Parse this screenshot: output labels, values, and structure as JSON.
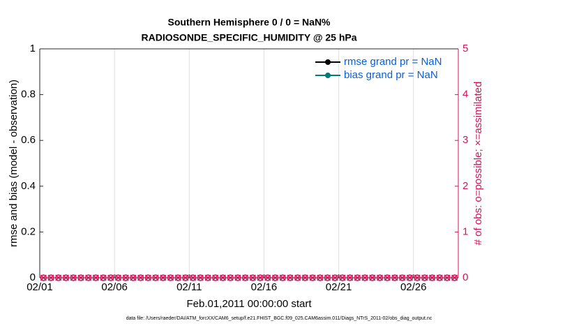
{
  "chart_data": {
    "type": "line",
    "title": "Southern Hemisphere 0 / 0 = NaN%",
    "subtitle": "RADIOSONDE_SPECIFIC_HUMIDITY @ 25 hPa",
    "x_label": "Feb.01,2011 00:00:00 start",
    "y_label": "rmse and bias (model - observation)",
    "y2_label": "# of obs: o=possible; ×=assimilated",
    "footnote": "data file: /Users/raeder/DAI/ATM_forcXX/CAM6_setup/f.e21.FHIST_BGC.f09_025.CAM6assim.011/Diags_NTrS_2011-02/obs_diag_output.nc",
    "xlim": [
      0,
      28
    ],
    "xticks": [
      {
        "value": 0,
        "label": "02/01"
      },
      {
        "value": 5,
        "label": "02/06"
      },
      {
        "value": 10,
        "label": "02/11"
      },
      {
        "value": 15,
        "label": "02/16"
      },
      {
        "value": 20,
        "label": "02/21"
      },
      {
        "value": 25,
        "label": "02/26"
      }
    ],
    "ylim": [
      0,
      1
    ],
    "yticks": [
      0,
      0.2,
      0.4,
      0.6,
      0.8,
      1
    ],
    "y2lim": [
      0,
      5
    ],
    "y2ticks": [
      0,
      1,
      2,
      3,
      4,
      5
    ],
    "y2_color": "#d6135a",
    "grid": "x",
    "legend": "upper right",
    "x": [
      0.25,
      0.75,
      1.25,
      1.75,
      2.25,
      2.75,
      3.25,
      3.75,
      4.25,
      4.75,
      5.25,
      5.75,
      6.25,
      6.75,
      7.25,
      7.75,
      8.25,
      8.75,
      9.25,
      9.75,
      10.25,
      10.75,
      11.25,
      11.75,
      12.25,
      12.75,
      13.25,
      13.75,
      14.25,
      14.75,
      15.25,
      15.75,
      16.25,
      16.75,
      17.25,
      17.75,
      18.25,
      18.75,
      19.25,
      19.75,
      20.25,
      20.75,
      21.25,
      21.75,
      22.25,
      22.75,
      23.25,
      23.75,
      24.25,
      24.75,
      25.25,
      25.75,
      26.25,
      26.75,
      27.25,
      27.75
    ],
    "series": [
      {
        "name": "rmse grand pr = NaN",
        "color": "#000000",
        "marker": "o",
        "values": [
          null,
          null,
          null,
          null,
          null,
          null,
          null,
          null,
          null,
          null,
          null,
          null,
          null,
          null,
          null,
          null,
          null,
          null,
          null,
          null,
          null,
          null,
          null,
          null,
          null,
          null,
          null,
          null,
          null,
          null,
          null,
          null,
          null,
          null,
          null,
          null,
          null,
          null,
          null,
          null,
          null,
          null,
          null,
          null,
          null,
          null,
          null,
          null,
          null,
          null,
          null,
          null,
          null,
          null,
          null,
          null
        ]
      },
      {
        "name": "bias grand pr = NaN",
        "color": "#007b7b",
        "marker": "o",
        "values": [
          null,
          null,
          null,
          null,
          null,
          null,
          null,
          null,
          null,
          null,
          null,
          null,
          null,
          null,
          null,
          null,
          null,
          null,
          null,
          null,
          null,
          null,
          null,
          null,
          null,
          null,
          null,
          null,
          null,
          null,
          null,
          null,
          null,
          null,
          null,
          null,
          null,
          null,
          null,
          null,
          null,
          null,
          null,
          null,
          null,
          null,
          null,
          null,
          null,
          null,
          null,
          null,
          null,
          null,
          null,
          null
        ]
      },
      {
        "color": "#d6135a",
        "marker": "o",
        "axis": "y2",
        "values": [
          0,
          0,
          0,
          0,
          0,
          0,
          0,
          0,
          0,
          0,
          0,
          0,
          0,
          0,
          0,
          0,
          0,
          0,
          0,
          0,
          0,
          0,
          0,
          0,
          0,
          0,
          0,
          0,
          0,
          0,
          0,
          0,
          0,
          0,
          0,
          0,
          0,
          0,
          0,
          0,
          0,
          0,
          0,
          0,
          0,
          0,
          0,
          0,
          0,
          0,
          0,
          0,
          0,
          0,
          0,
          0
        ]
      },
      {
        "color": "#d6135a",
        "marker": "x",
        "axis": "y2",
        "values": [
          0,
          0,
          0,
          0,
          0,
          0,
          0,
          0,
          0,
          0,
          0,
          0,
          0,
          0,
          0,
          0,
          0,
          0,
          0,
          0,
          0,
          0,
          0,
          0,
          0,
          0,
          0,
          0,
          0,
          0,
          0,
          0,
          0,
          0,
          0,
          0,
          0,
          0,
          0,
          0,
          0,
          0,
          0,
          0,
          0,
          0,
          0,
          0,
          0,
          0,
          0,
          0,
          0,
          0,
          0,
          0
        ]
      }
    ]
  }
}
